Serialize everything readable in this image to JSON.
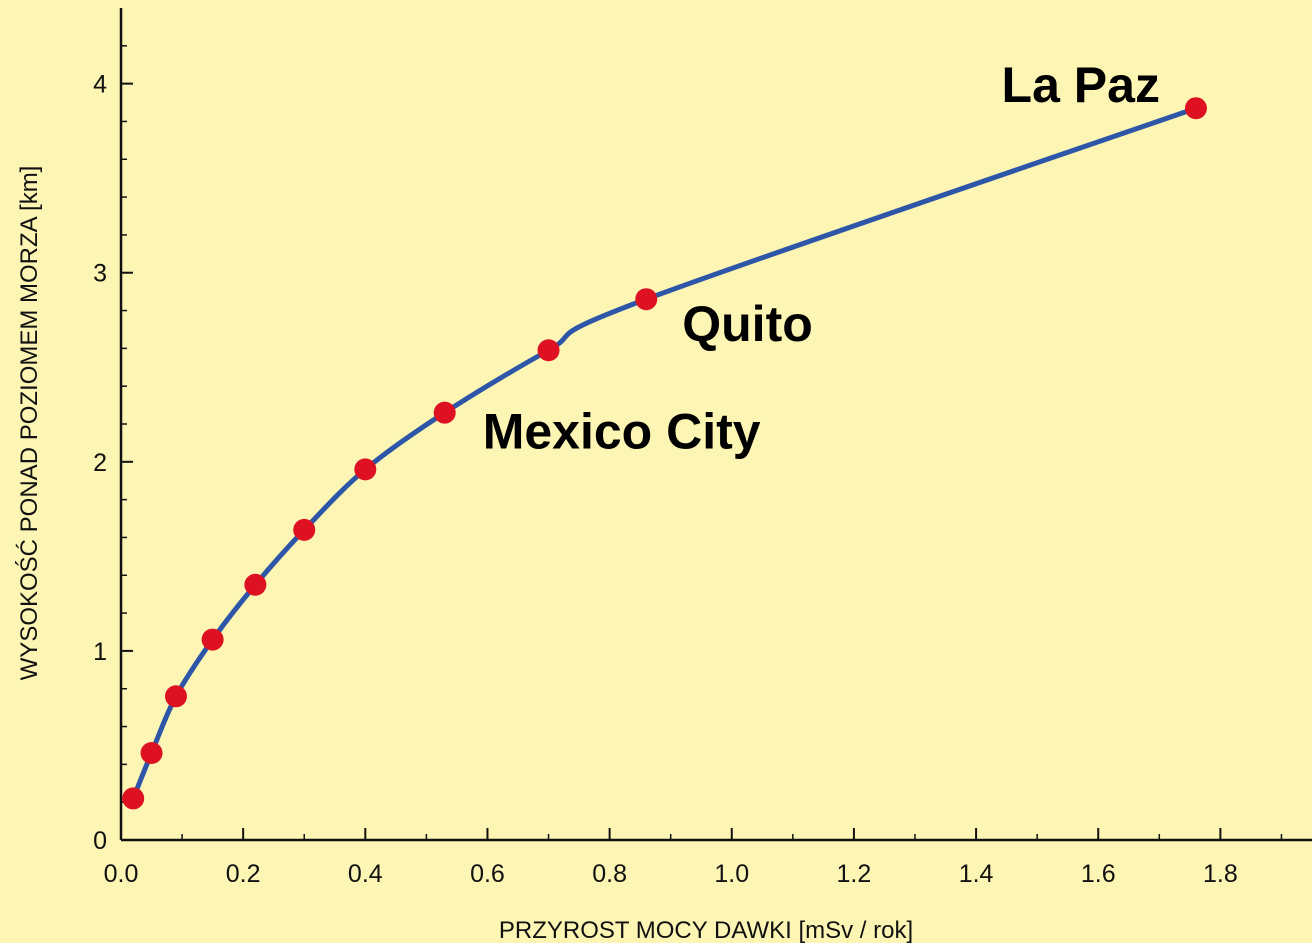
{
  "colors": {
    "background": "#fdf5b4",
    "curve": "#2d56a8",
    "point": "#dd1122",
    "axis": "#111111"
  },
  "chart_data": {
    "type": "scatter",
    "xlabel": "PRZYROST  MOCY DAWKI [mSv / rok]",
    "ylabel": "WYSOKOŚĆ PONAD POZIOMEM MORZA [km]",
    "xlim": [
      0,
      1.95
    ],
    "ylim": [
      0,
      4.4
    ],
    "x_ticks": [
      "0.0",
      "0.2",
      "0.4",
      "0.6",
      "0.8",
      "1.0",
      "1.2",
      "1.4",
      "1.6",
      "1.8"
    ],
    "y_ticks": [
      "0",
      "1",
      "2",
      "3",
      "4"
    ],
    "grid": false,
    "series": [
      {
        "points": [
          {
            "x": 0.02,
            "y": 0.22
          },
          {
            "x": 0.05,
            "y": 0.46
          },
          {
            "x": 0.09,
            "y": 0.76
          },
          {
            "x": 0.15,
            "y": 1.06
          },
          {
            "x": 0.22,
            "y": 1.35
          },
          {
            "x": 0.3,
            "y": 1.64
          },
          {
            "x": 0.4,
            "y": 1.96
          },
          {
            "x": 0.53,
            "y": 2.26
          },
          {
            "x": 0.7,
            "y": 2.59
          },
          {
            "x": 0.86,
            "y": 2.86
          },
          {
            "x": 1.76,
            "y": 3.87
          }
        ]
      }
    ],
    "annotations": [
      {
        "text": "La Paz",
        "x": 1.76,
        "y": 3.87,
        "position": "upper-left"
      },
      {
        "text": "Quito",
        "x": 0.86,
        "y": 2.86,
        "position": "lower-right"
      },
      {
        "text": "Mexico City",
        "x": 0.53,
        "y": 2.26,
        "position": "lower-right"
      }
    ]
  }
}
